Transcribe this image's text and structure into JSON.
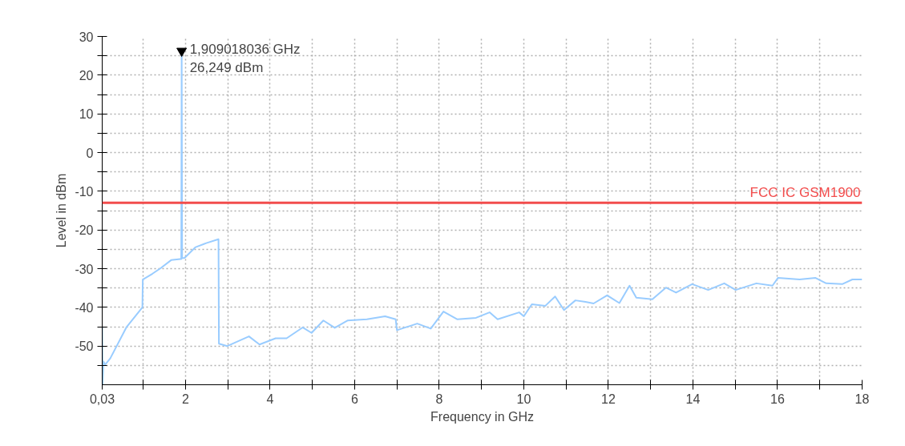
{
  "chart_data": {
    "type": "line",
    "xlabel": "Frequency in GHz",
    "ylabel": "Level in dBm",
    "xlim": [
      0.03,
      18
    ],
    "ylim": [
      -60,
      30
    ],
    "xticks": [
      {
        "value": 0.03,
        "label": "0,03"
      },
      {
        "value": 1,
        "label": null
      },
      2,
      {
        "value": 3,
        "label": null
      },
      4,
      {
        "value": 5,
        "label": null
      },
      6,
      {
        "value": 7,
        "label": null
      },
      8,
      {
        "value": 9,
        "label": null
      },
      10,
      {
        "value": 11,
        "label": null
      },
      12,
      {
        "value": 13,
        "label": null
      },
      14,
      {
        "value": 15,
        "label": null
      },
      16,
      {
        "value": 17,
        "label": null
      },
      18
    ],
    "yticks": [
      {
        "value": -55,
        "label": null
      },
      -50,
      {
        "value": -45,
        "label": null
      },
      -40,
      {
        "value": -35,
        "label": null
      },
      -30,
      {
        "value": -25,
        "label": null
      },
      -20,
      {
        "value": -15,
        "label": null
      },
      -10,
      {
        "value": -5,
        "label": null
      },
      0,
      {
        "value": 5,
        "label": null
      },
      10,
      {
        "value": 15,
        "label": null
      },
      20,
      {
        "value": 25,
        "label": null
      },
      30
    ],
    "grid": true,
    "marker": "none",
    "line_style": "solid",
    "series": [
      {
        "color": "#99ccff",
        "x": [
          0.03,
          0.04,
          0.06,
          0.1,
          0.22,
          0.6,
          0.98,
          0.99,
          1.22,
          1.41,
          1.66,
          1.88,
          1.9,
          1.909018036,
          1.92,
          1.98,
          2.23,
          2.49,
          2.78,
          2.79,
          2.99,
          3.5,
          3.75,
          4.13,
          4.39,
          4.77,
          4.98,
          5.26,
          5.53,
          5.83,
          6.29,
          6.72,
          6.97,
          7.0,
          7.48,
          7.8,
          8.1,
          8.43,
          8.87,
          9.19,
          9.38,
          9.89,
          10.0,
          10.19,
          10.51,
          10.74,
          10.95,
          11.22,
          11.46,
          11.65,
          11.97,
          12.26,
          12.5,
          12.66,
          13.04,
          13.36,
          13.6,
          13.98,
          14.36,
          14.74,
          15.01,
          15.5,
          15.88,
          16.01,
          16.52,
          16.9,
          17.15,
          17.53,
          17.77,
          18.0
        ],
        "values": [
          -45,
          -60,
          -54,
          -54.8,
          -53.2,
          -45.2,
          -40,
          -32.8,
          -31.3,
          -29.9,
          -27.8,
          -27.5,
          -27.5,
          26.249,
          -27.3,
          -27.2,
          -24.5,
          -23.4,
          -22.4,
          -49.4,
          -50,
          -47.5,
          -49.6,
          -48,
          -48,
          -45.2,
          -46.6,
          -43.4,
          -45.3,
          -43.4,
          -43.1,
          -42.3,
          -43.1,
          -45.9,
          -44.2,
          -45.5,
          -41.1,
          -43.1,
          -42.7,
          -41.3,
          -43.1,
          -41.3,
          -42.3,
          -39.2,
          -39.6,
          -37.2,
          -40.7,
          -38.2,
          -38.6,
          -39,
          -36.9,
          -38.9,
          -34.4,
          -37.5,
          -37.9,
          -34.9,
          -36.2,
          -34,
          -35.5,
          -33.8,
          -35.5,
          -33.8,
          -34.4,
          -32.4,
          -32.8,
          -32.4,
          -33.8,
          -34,
          -32.8,
          -32.8
        ]
      }
    ],
    "ref_lines": [
      {
        "axis": "y",
        "value": -13,
        "label": "FCC IC GSM1900",
        "color": "#f24c4c"
      }
    ],
    "annotations": [
      {
        "text": "1,909018036 GHz\n26,249 dBm",
        "x": 1.909018036,
        "y": 26.249
      }
    ]
  }
}
